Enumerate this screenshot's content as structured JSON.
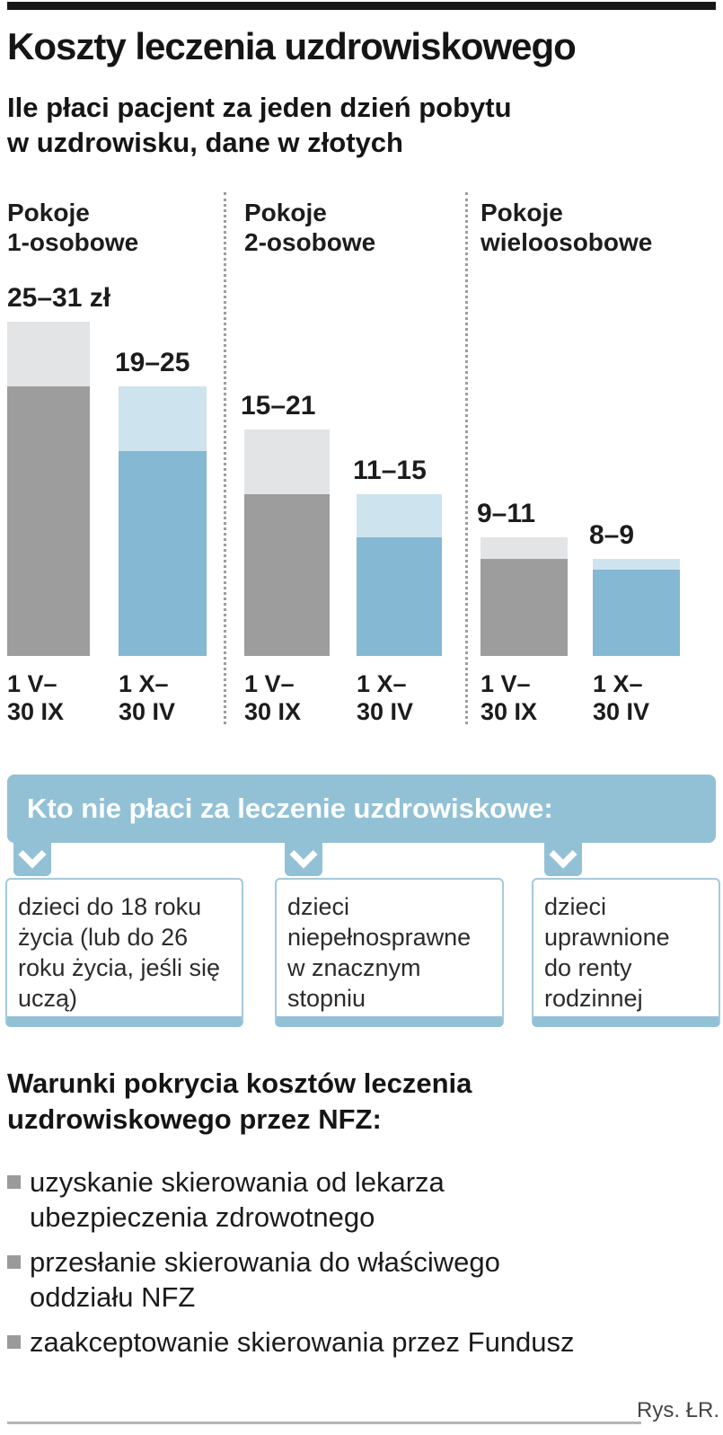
{
  "header": {
    "title": "Koszty leczenia uzdrowiskowego",
    "subtitle": "Ile płaci pacjent za jeden dzień pobytu\nw uzdrowisku, dane w złotych"
  },
  "chart_data": {
    "type": "bar",
    "title": "Koszty leczenia uzdrowiskowego",
    "subtitle": "Ile płaci pacjent za jeden dzień pobytu w uzdrowisku, dane w złotych",
    "unit": "zł",
    "ylim": [
      0,
      31
    ],
    "grid": false,
    "legend_position": "none",
    "groups": [
      {
        "category": "Pokoje\n1-osobowe",
        "bars": [
          {
            "period": "1 V–\n30 IX",
            "min": 25,
            "max": 31,
            "label": "25–31 zł",
            "scheme": "gray"
          },
          {
            "period": "1 X–\n30 IV",
            "min": 19,
            "max": 25,
            "label": "19–25",
            "scheme": "blue"
          }
        ]
      },
      {
        "category": "Pokoje\n2-osobowe",
        "bars": [
          {
            "period": "1 V–\n30 IX",
            "min": 15,
            "max": 21,
            "label": "15–21",
            "scheme": "gray"
          },
          {
            "period": "1 X–\n30 IV",
            "min": 11,
            "max": 15,
            "label": "11–15",
            "scheme": "blue"
          }
        ]
      },
      {
        "category": "Pokoje\nwieloosobowe",
        "bars": [
          {
            "period": "1 V–\n30 IX",
            "min": 9,
            "max": 11,
            "label": "9–11",
            "scheme": "gray"
          },
          {
            "period": "1 X–\n30 IV",
            "min": 8,
            "max": 9,
            "label": "8–9",
            "scheme": "blue"
          }
        ]
      }
    ]
  },
  "exemptions": {
    "banner": "Kto nie płaci za leczenie uzdrowiskowe:",
    "boxes": [
      "dzieci do 18 roku\nżycia (lub do 26\nroku życia, jeśli się\nuczą)",
      "dzieci\nniepełnosprawne\nw znacznym\nstopniu",
      "dzieci\nuprawnione\ndo renty\nrodzinnej"
    ]
  },
  "conditions": {
    "heading": "Warunki pokrycia kosztów leczenia\nuzdrowiskowego przez NFZ:",
    "items": [
      "uzyskanie skierowania od lekarza\nubezpieczenia zdrowotnego",
      "przesłanie skierowania do właściwego\noddziału NFZ",
      "zaakceptowanie skierowania przez Fundusz"
    ]
  },
  "footer": {
    "credit": "Rys. ŁR."
  },
  "colors": {
    "bar_gray_dark": "#9d9d9d",
    "bar_gray_light": "#e3e4e5",
    "bar_blue_dark": "#84b8d3",
    "bar_blue_light": "#cde3ed",
    "banner_blue": "#92c1d6",
    "box_border": "#a6c9db",
    "bullet_gray": "#9a9a9a",
    "rule_black": "#161616"
  }
}
